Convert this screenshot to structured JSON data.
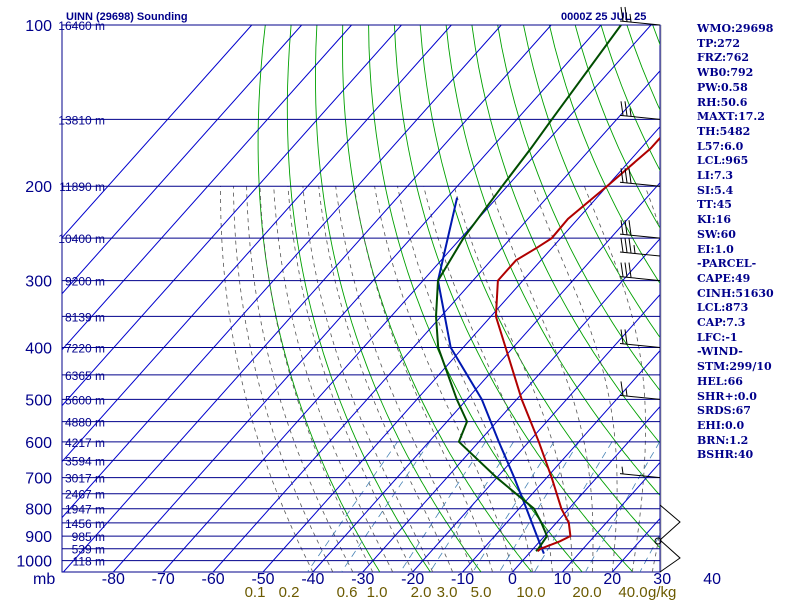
{
  "chart_data": {
    "type": "line",
    "title": "UINN (29698) Sounding",
    "time_label": "0000Z 25 JUL 25",
    "pressure_ticks": [
      100,
      200,
      300,
      400,
      500,
      600,
      700,
      800,
      900,
      1000
    ],
    "pressure_unit": "mb",
    "temp_ticks": [
      -80,
      -70,
      -60,
      -50,
      -40,
      -30,
      -20,
      -10,
      0,
      10,
      20,
      30,
      40
    ],
    "mixing_ratio_ticks": [
      "0.1",
      "0.2",
      "0.6",
      "1.0",
      "2.0",
      "3.0",
      "5.0",
      "10.0",
      "20.0",
      "40.0"
    ],
    "mixing_ratio_unit": "g/kg",
    "height_labels": [
      {
        "p": 100,
        "label": "16460 m"
      },
      {
        "p": 150,
        "label": "13810 m"
      },
      {
        "p": 200,
        "label": "11890 m"
      },
      {
        "p": 250,
        "label": "10400 m"
      },
      {
        "p": 300,
        "label": "9200 m"
      },
      {
        "p": 350,
        "label": "8139 m"
      },
      {
        "p": 400,
        "label": "7220 m"
      },
      {
        "p": 450,
        "label": "6365 m"
      },
      {
        "p": 500,
        "label": "5600 m"
      },
      {
        "p": 550,
        "label": "4880 m"
      },
      {
        "p": 600,
        "label": "4217 m"
      },
      {
        "p": 650,
        "label": "3594 m"
      },
      {
        "p": 700,
        "label": "3017 m"
      },
      {
        "p": 750,
        "label": "2467 m"
      },
      {
        "p": 800,
        "label": "1947 m"
      },
      {
        "p": 850,
        "label": "1456 m"
      },
      {
        "p": 900,
        "label": "985 m"
      },
      {
        "p": 950,
        "label": "539 m"
      },
      {
        "p": 1000,
        "label": "118 m"
      }
    ],
    "temperature": [
      {
        "p": 100,
        "t": -50.8
      },
      {
        "p": 120,
        "t": -50.2
      },
      {
        "p": 150,
        "t": -48.0
      },
      {
        "p": 170,
        "t": -48.0
      },
      {
        "p": 200,
        "t": -50.0
      },
      {
        "p": 230,
        "t": -52.0
      },
      {
        "p": 250,
        "t": -51.8
      },
      {
        "p": 260,
        "t": -53.0
      },
      {
        "p": 275,
        "t": -55.0
      },
      {
        "p": 300,
        "t": -55.0
      },
      {
        "p": 350,
        "t": -49.0
      },
      {
        "p": 400,
        "t": -41.5
      },
      {
        "p": 500,
        "t": -29.0
      },
      {
        "p": 600,
        "t": -18.0
      },
      {
        "p": 700,
        "t": -9.0
      },
      {
        "p": 800,
        "t": -1.5
      },
      {
        "p": 850,
        "t": 2.5
      },
      {
        "p": 900,
        "t": 5.2
      },
      {
        "p": 920,
        "t": 4.0
      },
      {
        "p": 950,
        "t": 1.5
      },
      {
        "p": 960,
        "t": 1.3
      }
    ],
    "dewpoint": [
      {
        "p": 100,
        "t": -76.0
      },
      {
        "p": 150,
        "t": -73.0
      },
      {
        "p": 170,
        "t": -72.0
      },
      {
        "p": 200,
        "t": -71.0
      },
      {
        "p": 250,
        "t": -69.5
      },
      {
        "p": 300,
        "t": -67.0
      },
      {
        "p": 350,
        "t": -61.0
      },
      {
        "p": 400,
        "t": -55.0
      },
      {
        "p": 500,
        "t": -42.0
      },
      {
        "p": 550,
        "t": -36.0
      },
      {
        "p": 600,
        "t": -34.0
      },
      {
        "p": 700,
        "t": -20.0
      },
      {
        "p": 800,
        "t": -7.0
      },
      {
        "p": 850,
        "t": -3.0
      },
      {
        "p": 900,
        "t": 0.5
      },
      {
        "p": 950,
        "t": 1.0
      },
      {
        "p": 960,
        "t": 1.0
      }
    ],
    "parcel": [
      {
        "p": 210,
        "t": -78.0
      },
      {
        "p": 300,
        "t": -67.0
      },
      {
        "p": 400,
        "t": -52.5
      },
      {
        "p": 500,
        "t": -37.0
      },
      {
        "p": 600,
        "t": -26.0
      },
      {
        "p": 700,
        "t": -16.5
      },
      {
        "p": 800,
        "t": -8.5
      },
      {
        "p": 900,
        "t": -1.5
      },
      {
        "p": 970,
        "t": 3.0
      }
    ],
    "wind_barbs": [
      {
        "p": 100,
        "speed": 25
      },
      {
        "p": 150,
        "speed": 25
      },
      {
        "p": 200,
        "speed": 30
      },
      {
        "p": 250,
        "speed": 30
      },
      {
        "p": 270,
        "speed": 35
      },
      {
        "p": 300,
        "speed": 30
      },
      {
        "p": 400,
        "speed": 20
      },
      {
        "p": 500,
        "speed": 15
      },
      {
        "p": 700,
        "speed": 5
      }
    ],
    "axes": {
      "p_range": [
        100,
        1050
      ],
      "t_range_at_bottom": [
        -80,
        40
      ],
      "log_p": true,
      "skewed": true
    }
  },
  "indices": [
    "WMO:29698",
    "TP:272",
    "FRZ:762",
    "WB0:792",
    "PW:0.58",
    "RH:50.6",
    "MAXT:17.2",
    "TH:5482",
    "L57:6.0",
    "LCL:965",
    "LI:7.3",
    "SI:5.4",
    "TT:45",
    "KI:16",
    "SW:60",
    "EI:1.0",
    "-PARCEL-",
    "CAPE:49",
    "CINH:51630",
    "LCL:873",
    "CAP:7.3",
    "LFC:-1",
    "-WIND-",
    "STM:299/10",
    "HEL:66",
    "SHR+:0.0",
    "SRDS:67",
    "EHI:0.0",
    "BRN:1.2",
    "BSHR:40"
  ],
  "colors": {
    "isobar": "#00008b",
    "isotherm": "#0000cd",
    "dry_adiabat": "#00a000",
    "moist_adiabat": "#555555",
    "mixing_ratio": "#4682b4",
    "temperature": "#b00000",
    "dewpoint": "#004d00",
    "parcel": "#0018b0",
    "label": "#00008b",
    "mixing_label": "#6b5a00",
    "wind": "#000000"
  }
}
